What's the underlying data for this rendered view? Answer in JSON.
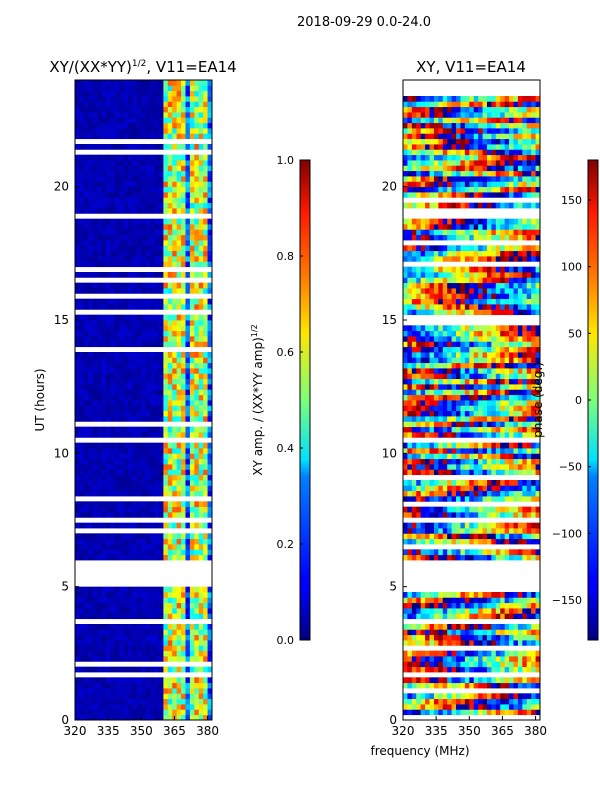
{
  "figure_title": "2018-09-29 0.0-24.0",
  "shared_xlabel": "frequency (MHz)",
  "chart_data": [
    {
      "type": "heatmap",
      "title_main": "XY/(XX*YY)",
      "title_exp": "1/2",
      "title_tail": ", V11=EA14",
      "xlabel": "",
      "ylabel": "UT (hours)",
      "xlim": [
        320,
        382
      ],
      "ylim": [
        0,
        24
      ],
      "xticks": [
        320,
        335,
        350,
        365,
        380
      ],
      "yticks": [
        0,
        5,
        10,
        15,
        20
      ],
      "colormap": "jet",
      "colorbar": {
        "label_main": "XY amp. / (XX*YY amp)",
        "label_exp": "1/2",
        "range": [
          0.0,
          1.0
        ],
        "ticks": [
          0.0,
          0.2,
          0.4,
          0.6,
          0.8,
          1.0
        ],
        "tick_labels": [
          "0.0",
          "0.2",
          "0.4",
          "0.6",
          "0.8",
          "1.0"
        ]
      },
      "data_gaps_hours": [
        [
          10.3,
          10.6
        ],
        [
          5.0,
          5.9
        ]
      ],
      "high_value_channels_mhz": [
        362,
        366,
        369,
        373,
        376,
        379
      ]
    },
    {
      "type": "heatmap",
      "title_main": "XY, V11=EA14",
      "xlabel": "frequency (MHz)",
      "ylabel": "",
      "xlim": [
        320,
        382
      ],
      "ylim": [
        0,
        24
      ],
      "xticks": [
        320,
        335,
        350,
        365,
        380
      ],
      "yticks": [
        0,
        5,
        10,
        15,
        20
      ],
      "colormap": "jet",
      "colorbar": {
        "label": "phase (deg.)",
        "range": [
          -180,
          180
        ],
        "ticks": [
          -150,
          -100,
          -50,
          0,
          50,
          100,
          150
        ],
        "tick_labels": [
          "−150",
          "−100",
          "−50",
          "0",
          "50",
          "100",
          "150"
        ]
      },
      "data_gaps_hours": [
        [
          10.3,
          10.6
        ],
        [
          5.0,
          5.9
        ]
      ]
    }
  ]
}
